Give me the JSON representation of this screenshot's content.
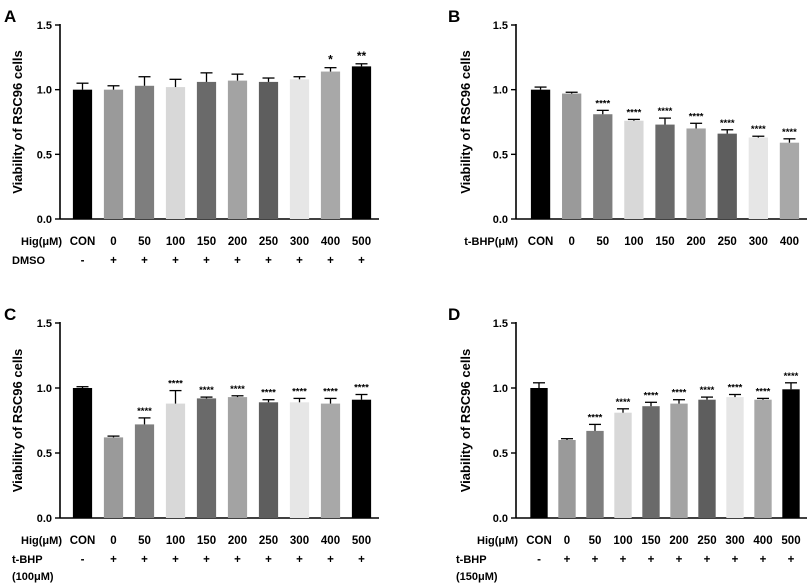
{
  "chart_data": [
    {
      "type": "bar",
      "panel": "A",
      "ylabel": "Viability of RSC96 cells",
      "ylim": [
        0,
        1.5
      ],
      "yticks": [
        "0.0",
        "0.5",
        "1.0",
        "1.5"
      ],
      "xrow_label": "Hig(μM)",
      "categories": [
        "CON",
        "0",
        "50",
        "100",
        "150",
        "200",
        "250",
        "300",
        "400",
        "500"
      ],
      "values": [
        1.0,
        1.0,
        1.03,
        1.02,
        1.06,
        1.07,
        1.06,
        1.08,
        1.14,
        1.18
      ],
      "errors": [
        0.05,
        0.03,
        0.07,
        0.06,
        0.07,
        0.05,
        0.03,
        0.02,
        0.03,
        0.02
      ],
      "colors": [
        "#000000",
        "#9a9a9a",
        "#7e7e7e",
        "#d8d8d8",
        "#6a6a6a",
        "#a3a3a3",
        "#5e5e5e",
        "#e6e6e6",
        "#a8a8a8",
        "#000000"
      ],
      "significance": [
        "",
        "",
        "",
        "",
        "",
        "",
        "",
        "",
        "*",
        "**"
      ],
      "treatment": {
        "label_lines": [
          "DMSO"
        ],
        "signs": [
          "-",
          "+",
          "+",
          "+",
          "+",
          "+",
          "+",
          "+",
          "+",
          "+"
        ]
      }
    },
    {
      "type": "bar",
      "panel": "B",
      "ylabel": "Viability of RSC96 cells",
      "ylim": [
        0,
        1.5
      ],
      "yticks": [
        "0.0",
        "0.5",
        "1.0",
        "1.5"
      ],
      "xrow_label": "t-BHP(μM)",
      "categories": [
        "CON",
        "0",
        "50",
        "100",
        "150",
        "200",
        "250",
        "300",
        "400"
      ],
      "values": [
        1.0,
        0.97,
        0.81,
        0.76,
        0.73,
        0.7,
        0.66,
        0.63,
        0.59
      ],
      "errors": [
        0.02,
        0.01,
        0.03,
        0.01,
        0.05,
        0.04,
        0.03,
        0.01,
        0.03
      ],
      "colors": [
        "#000000",
        "#9a9a9a",
        "#7e7e7e",
        "#d8d8d8",
        "#6a6a6a",
        "#a3a3a3",
        "#5e5e5e",
        "#e6e6e6",
        "#a8a8a8"
      ],
      "significance": [
        "",
        "",
        "****",
        "****",
        "****",
        "****",
        "****",
        "****",
        "****"
      ]
    },
    {
      "type": "bar",
      "panel": "C",
      "ylabel": "Viability of RSC96 cells",
      "ylim": [
        0,
        1.5
      ],
      "yticks": [
        "0.0",
        "0.5",
        "1.0",
        "1.5"
      ],
      "xrow_label": "Hig(μM)",
      "categories": [
        "CON",
        "0",
        "50",
        "100",
        "150",
        "200",
        "250",
        "300",
        "400",
        "500"
      ],
      "values": [
        1.0,
        0.62,
        0.72,
        0.88,
        0.92,
        0.93,
        0.89,
        0.89,
        0.88,
        0.91
      ],
      "errors": [
        0.01,
        0.01,
        0.05,
        0.1,
        0.01,
        0.01,
        0.02,
        0.03,
        0.04,
        0.04
      ],
      "colors": [
        "#000000",
        "#9a9a9a",
        "#7e7e7e",
        "#d8d8d8",
        "#6a6a6a",
        "#a3a3a3",
        "#5e5e5e",
        "#e6e6e6",
        "#a8a8a8",
        "#000000"
      ],
      "significance": [
        "",
        "",
        "****",
        "****",
        "****",
        "****",
        "****",
        "****",
        "****",
        "****"
      ],
      "treatment": {
        "label_lines": [
          "t-BHP",
          "(100μM)"
        ],
        "signs": [
          "-",
          "+",
          "+",
          "+",
          "+",
          "+",
          "+",
          "+",
          "+",
          "+"
        ]
      }
    },
    {
      "type": "bar",
      "panel": "D",
      "ylabel": "Viability of RSC96 cells",
      "ylim": [
        0,
        1.5
      ],
      "yticks": [
        "0.0",
        "0.5",
        "1.0",
        "1.5"
      ],
      "xrow_label": "Hig(μM)",
      "categories": [
        "CON",
        "0",
        "50",
        "100",
        "150",
        "200",
        "250",
        "300",
        "400",
        "500"
      ],
      "values": [
        1.0,
        0.6,
        0.67,
        0.81,
        0.86,
        0.88,
        0.91,
        0.93,
        0.91,
        0.99
      ],
      "errors": [
        0.04,
        0.01,
        0.05,
        0.03,
        0.03,
        0.03,
        0.02,
        0.02,
        0.01,
        0.05
      ],
      "colors": [
        "#000000",
        "#9a9a9a",
        "#7e7e7e",
        "#d8d8d8",
        "#6a6a6a",
        "#a3a3a3",
        "#5e5e5e",
        "#e6e6e6",
        "#a8a8a8",
        "#000000"
      ],
      "significance": [
        "",
        "",
        "****",
        "****",
        "****",
        "****",
        "****",
        "****",
        "****",
        "****"
      ],
      "treatment": {
        "label_lines": [
          "t-BHP",
          "(150μM)"
        ],
        "signs": [
          "-",
          "+",
          "+",
          "+",
          "+",
          "+",
          "+",
          "+",
          "+",
          "+"
        ]
      }
    }
  ]
}
